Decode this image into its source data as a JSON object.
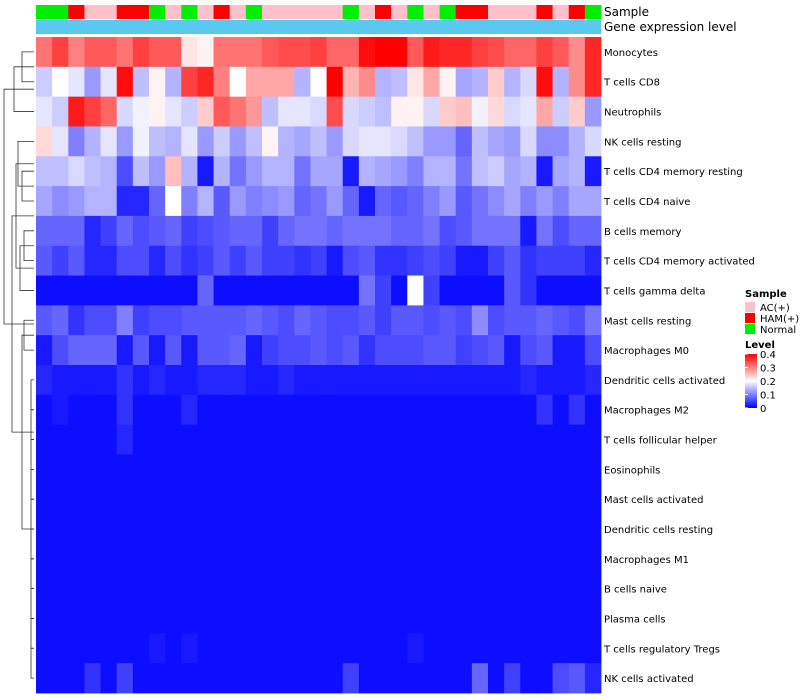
{
  "chart_data": {
    "type": "heatmap",
    "title": "",
    "annotations": [
      {
        "label": "Sample",
        "type": "categorical"
      },
      {
        "label": "Gene expression level",
        "type": "continuous",
        "color": "#5bc8f0"
      }
    ],
    "sample_groups": [
      "Normal",
      "Normal",
      "HAM(+)",
      "AC(+)",
      "AC(+)",
      "HAM(+)",
      "HAM(+)",
      "Normal",
      "AC(+)",
      "Normal",
      "AC(+)",
      "HAM(+)",
      "AC(+)",
      "Normal",
      "AC(+)",
      "AC(+)",
      "AC(+)",
      "AC(+)",
      "AC(+)",
      "Normal",
      "AC(+)",
      "HAM(+)",
      "AC(+)",
      "Normal",
      "AC(+)",
      "Normal",
      "HAM(+)",
      "HAM(+)",
      "AC(+)",
      "AC(+)",
      "AC(+)",
      "HAM(+)",
      "AC(+)",
      "HAM(+)",
      "Normal"
    ],
    "rows": [
      "Monocytes",
      "T cells CD8",
      "Neutrophils",
      "NK cells resting",
      "T cells CD4 memory resting",
      "T cells CD4 naive",
      "B cells memory",
      "T cells CD4 memory activated",
      "T cells gamma delta",
      "Mast cells resting",
      "Macrophages M0",
      "Dendritic cells activated",
      "Macrophages M2",
      "T cells follicular helper",
      "Eosinophils",
      "Mast cells activated",
      "Dendritic cells resting",
      "Macrophages M1",
      "B cells naive",
      "Plasma cells",
      "T cells regulatory  Tregs",
      "NK cells activated"
    ],
    "values": [
      [
        0.31,
        0.35,
        0.3,
        0.33,
        0.33,
        0.31,
        0.35,
        0.33,
        0.33,
        0.22,
        0.21,
        0.31,
        0.31,
        0.31,
        0.33,
        0.34,
        0.34,
        0.35,
        0.32,
        0.32,
        0.39,
        0.4,
        0.4,
        0.33,
        0.38,
        0.37,
        0.37,
        0.35,
        0.34,
        0.32,
        0.32,
        0.35,
        0.33,
        0.29,
        0.37
      ],
      [
        0.16,
        0.2,
        0.18,
        0.12,
        0.18,
        0.39,
        0.15,
        0.21,
        0.14,
        0.35,
        0.37,
        0.3,
        0.2,
        0.27,
        0.27,
        0.27,
        0.14,
        0.2,
        0.4,
        0.26,
        0.29,
        0.14,
        0.15,
        0.22,
        0.27,
        0.21,
        0.13,
        0.14,
        0.24,
        0.14,
        0.17,
        0.39,
        0.14,
        0.29,
        0.37
      ],
      [
        0.18,
        0.16,
        0.38,
        0.35,
        0.32,
        0.17,
        0.19,
        0.21,
        0.18,
        0.16,
        0.24,
        0.33,
        0.31,
        0.28,
        0.15,
        0.18,
        0.18,
        0.17,
        0.34,
        0.17,
        0.16,
        0.15,
        0.21,
        0.21,
        0.17,
        0.24,
        0.25,
        0.19,
        0.23,
        0.17,
        0.18,
        0.27,
        0.16,
        0.24,
        0.12
      ],
      [
        0.23,
        0.18,
        0.1,
        0.14,
        0.18,
        0.12,
        0.19,
        0.15,
        0.14,
        0.18,
        0.12,
        0.16,
        0.12,
        0.15,
        0.21,
        0.14,
        0.13,
        0.15,
        0.12,
        0.17,
        0.18,
        0.18,
        0.17,
        0.15,
        0.12,
        0.12,
        0.08,
        0.15,
        0.13,
        0.12,
        0.17,
        0.11,
        0.11,
        0.14,
        0.17
      ],
      [
        0.15,
        0.15,
        0.17,
        0.15,
        0.14,
        0.06,
        0.15,
        0.12,
        0.25,
        0.14,
        0.02,
        0.14,
        0.09,
        0.12,
        0.14,
        0.14,
        0.09,
        0.13,
        0.13,
        0.02,
        0.14,
        0.13,
        0.12,
        0.1,
        0.14,
        0.14,
        0.09,
        0.15,
        0.16,
        0.13,
        0.14,
        0.02,
        0.13,
        0.14,
        0.02
      ],
      [
        0.13,
        0.11,
        0.12,
        0.14,
        0.14,
        0.03,
        0.03,
        0.08,
        0.2,
        0.1,
        0.14,
        0.07,
        0.12,
        0.1,
        0.11,
        0.12,
        0.08,
        0.09,
        0.12,
        0.08,
        0.02,
        0.08,
        0.07,
        0.08,
        0.1,
        0.12,
        0.07,
        0.09,
        0.11,
        0.13,
        0.1,
        0.12,
        0.1,
        0.13,
        0.13
      ],
      [
        0.08,
        0.08,
        0.08,
        0.03,
        0.05,
        0.08,
        0.06,
        0.07,
        0.08,
        0.05,
        0.06,
        0.07,
        0.08,
        0.08,
        0.05,
        0.08,
        0.09,
        0.09,
        0.08,
        0.09,
        0.09,
        0.09,
        0.08,
        0.08,
        0.09,
        0.06,
        0.07,
        0.09,
        0.09,
        0.09,
        0.02,
        0.09,
        0.06,
        0.08,
        0.08
      ],
      [
        0.07,
        0.05,
        0.07,
        0.03,
        0.03,
        0.06,
        0.06,
        0.03,
        0.06,
        0.04,
        0.05,
        0.07,
        0.05,
        0.07,
        0.05,
        0.05,
        0.04,
        0.05,
        0.02,
        0.06,
        0.07,
        0.04,
        0.04,
        0.05,
        0.06,
        0.05,
        0.02,
        0.02,
        0.05,
        0.07,
        0.04,
        0.05,
        0.05,
        0.05,
        0.03
      ],
      [
        0.01,
        0.01,
        0.01,
        0.01,
        0.01,
        0.01,
        0.01,
        0.01,
        0.01,
        0.01,
        0.08,
        0.01,
        0.01,
        0.01,
        0.01,
        0.01,
        0.01,
        0.01,
        0.01,
        0.01,
        0.09,
        0.05,
        0.01,
        0.2,
        0.05,
        0.01,
        0.01,
        0.01,
        0.01,
        0.07,
        0.04,
        0.01,
        0.01,
        0.01,
        0.01
      ],
      [
        0.07,
        0.08,
        0.04,
        0.06,
        0.06,
        0.1,
        0.05,
        0.06,
        0.06,
        0.07,
        0.07,
        0.07,
        0.07,
        0.08,
        0.07,
        0.06,
        0.08,
        0.07,
        0.06,
        0.06,
        0.07,
        0.05,
        0.07,
        0.07,
        0.06,
        0.07,
        0.06,
        0.11,
        0.06,
        0.07,
        0.07,
        0.08,
        0.07,
        0.06,
        0.09
      ],
      [
        0.02,
        0.06,
        0.08,
        0.08,
        0.08,
        0.02,
        0.07,
        0.02,
        0.07,
        0.02,
        0.07,
        0.07,
        0.08,
        0.02,
        0.05,
        0.06,
        0.06,
        0.07,
        0.06,
        0.07,
        0.04,
        0.06,
        0.06,
        0.06,
        0.07,
        0.07,
        0.05,
        0.06,
        0.07,
        0.02,
        0.06,
        0.07,
        0.02,
        0.02,
        0.06
      ],
      [
        0.03,
        0.02,
        0.02,
        0.02,
        0.02,
        0.04,
        0.02,
        0.03,
        0.02,
        0.02,
        0.03,
        0.03,
        0.03,
        0.02,
        0.02,
        0.03,
        0.02,
        0.02,
        0.02,
        0.02,
        0.02,
        0.02,
        0.02,
        0.02,
        0.02,
        0.02,
        0.02,
        0.02,
        0.02,
        0.02,
        0.03,
        0.02,
        0.02,
        0.02,
        0.03
      ],
      [
        0.01,
        0.02,
        0.01,
        0.01,
        0.01,
        0.04,
        0.01,
        0.01,
        0.01,
        0.03,
        0.01,
        0.01,
        0.01,
        0.01,
        0.01,
        0.01,
        0.01,
        0.01,
        0.01,
        0.01,
        0.01,
        0.01,
        0.01,
        0.01,
        0.01,
        0.01,
        0.01,
        0.01,
        0.01,
        0.01,
        0.01,
        0.04,
        0.01,
        0.04,
        0.01
      ],
      [
        0.01,
        0.01,
        0.01,
        0.01,
        0.01,
        0.03,
        0.01,
        0.01,
        0.01,
        0.01,
        0.01,
        0.01,
        0.01,
        0.01,
        0.01,
        0.01,
        0.01,
        0.01,
        0.01,
        0.01,
        0.01,
        0.01,
        0.01,
        0.01,
        0.01,
        0.01,
        0.01,
        0.01,
        0.01,
        0.01,
        0.01,
        0.01,
        0.01,
        0.01,
        0.01
      ],
      [
        0.01,
        0.01,
        0.01,
        0.01,
        0.01,
        0.01,
        0.01,
        0.01,
        0.01,
        0.01,
        0.01,
        0.01,
        0.01,
        0.01,
        0.01,
        0.01,
        0.01,
        0.01,
        0.01,
        0.01,
        0.01,
        0.01,
        0.01,
        0.01,
        0.01,
        0.01,
        0.01,
        0.01,
        0.01,
        0.01,
        0.01,
        0.01,
        0.01,
        0.01,
        0.01
      ],
      [
        0.01,
        0.01,
        0.01,
        0.01,
        0.01,
        0.01,
        0.01,
        0.01,
        0.01,
        0.01,
        0.01,
        0.01,
        0.01,
        0.01,
        0.01,
        0.01,
        0.01,
        0.01,
        0.01,
        0.01,
        0.01,
        0.01,
        0.01,
        0.01,
        0.01,
        0.01,
        0.01,
        0.01,
        0.01,
        0.01,
        0.01,
        0.01,
        0.01,
        0.01,
        0.01
      ],
      [
        0.01,
        0.01,
        0.01,
        0.01,
        0.01,
        0.01,
        0.01,
        0.01,
        0.01,
        0.01,
        0.01,
        0.01,
        0.01,
        0.01,
        0.01,
        0.01,
        0.01,
        0.01,
        0.01,
        0.01,
        0.01,
        0.01,
        0.01,
        0.01,
        0.01,
        0.01,
        0.01,
        0.01,
        0.01,
        0.01,
        0.01,
        0.01,
        0.01,
        0.01,
        0.01
      ],
      [
        0.01,
        0.01,
        0.01,
        0.01,
        0.01,
        0.01,
        0.01,
        0.01,
        0.01,
        0.01,
        0.01,
        0.01,
        0.01,
        0.01,
        0.01,
        0.01,
        0.01,
        0.01,
        0.01,
        0.01,
        0.01,
        0.01,
        0.01,
        0.01,
        0.01,
        0.01,
        0.01,
        0.01,
        0.01,
        0.01,
        0.01,
        0.01,
        0.01,
        0.01,
        0.01
      ],
      [
        0.01,
        0.01,
        0.01,
        0.01,
        0.01,
        0.01,
        0.01,
        0.01,
        0.01,
        0.01,
        0.01,
        0.01,
        0.01,
        0.01,
        0.01,
        0.01,
        0.01,
        0.01,
        0.01,
        0.01,
        0.01,
        0.01,
        0.01,
        0.01,
        0.01,
        0.01,
        0.01,
        0.01,
        0.01,
        0.01,
        0.01,
        0.01,
        0.01,
        0.01,
        0.01
      ],
      [
        0.01,
        0.01,
        0.01,
        0.01,
        0.01,
        0.01,
        0.01,
        0.01,
        0.01,
        0.01,
        0.01,
        0.01,
        0.01,
        0.01,
        0.01,
        0.01,
        0.01,
        0.01,
        0.01,
        0.01,
        0.01,
        0.01,
        0.01,
        0.01,
        0.01,
        0.01,
        0.01,
        0.01,
        0.01,
        0.01,
        0.01,
        0.01,
        0.01,
        0.01,
        0.01
      ],
      [
        0.01,
        0.01,
        0.01,
        0.01,
        0.01,
        0.01,
        0.01,
        0.02,
        0.01,
        0.02,
        0.01,
        0.01,
        0.01,
        0.01,
        0.01,
        0.01,
        0.01,
        0.01,
        0.01,
        0.01,
        0.01,
        0.01,
        0.01,
        0.02,
        0.01,
        0.01,
        0.01,
        0.01,
        0.01,
        0.01,
        0.01,
        0.01,
        0.01,
        0.01,
        0.01
      ],
      [
        0.01,
        0.01,
        0.01,
        0.04,
        0.01,
        0.05,
        0.01,
        0.01,
        0.01,
        0.01,
        0.01,
        0.01,
        0.01,
        0.01,
        0.01,
        0.01,
        0.01,
        0.01,
        0.01,
        0.05,
        0.01,
        0.01,
        0.01,
        0.01,
        0.01,
        0.01,
        0.01,
        0.08,
        0.01,
        0.05,
        0.01,
        0.01,
        0.06,
        0.07,
        0.03
      ]
    ],
    "legend": {
      "sample_title": "Sample",
      "sample_items": [
        {
          "label": "AC(+)",
          "color": "#ffc0cb"
        },
        {
          "label": "HAM(+)",
          "color": "#ff0000"
        },
        {
          "label": "Normal",
          "color": "#00ee00"
        }
      ],
      "level_title": "Level",
      "level_ticks": [
        0.4,
        0.3,
        0.2,
        0.1,
        0
      ],
      "level_tick_labels": [
        "0.4",
        "0.3",
        "0.2",
        "0.1",
        "0"
      ],
      "level_range": [
        0,
        0.4
      ],
      "color_low": "#0000ff",
      "color_mid": "#ffffff",
      "color_high": "#ff0000",
      "midpoint": 0.2
    }
  }
}
